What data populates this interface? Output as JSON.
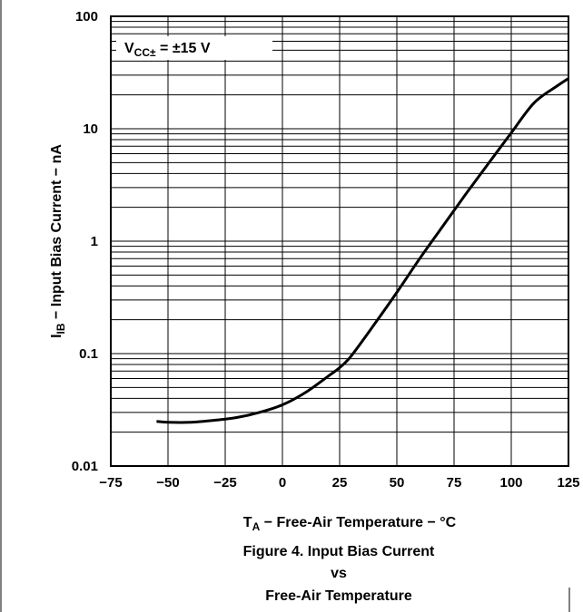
{
  "chart_data": {
    "type": "line",
    "xlabel": {
      "symbol": "T",
      "sub": "A",
      "text": " − Free-Air Temperature − °C"
    },
    "ylabel": {
      "symbol": "I",
      "sub": "IB",
      "text": " − Input Bias Current − nA"
    },
    "xlim": [
      -75,
      125
    ],
    "ylim": [
      0.01,
      100
    ],
    "y_scale": "log",
    "grid": true,
    "x_ticks": [
      -75,
      -50,
      -25,
      0,
      25,
      50,
      75,
      100,
      125
    ],
    "x_tick_labels": [
      "−75",
      "−50",
      "−25",
      "0",
      "25",
      "50",
      "75",
      "100",
      "125"
    ],
    "y_ticks": [
      0.01,
      0.1,
      1,
      10,
      100
    ],
    "y_tick_labels": [
      "0.01",
      "0.1",
      "1",
      "10",
      "100"
    ],
    "annotation": {
      "main": "V",
      "sub": "CC±",
      "text": " = ±15 V"
    },
    "series": [
      {
        "x": [
          -55,
          -50,
          -40,
          -30,
          -20,
          -10,
          0,
          10,
          20,
          25,
          30,
          40,
          50,
          60,
          70,
          80,
          90,
          100,
          110,
          120,
          125
        ],
        "y": [
          0.025,
          0.0245,
          0.0245,
          0.0255,
          0.027,
          0.03,
          0.035,
          0.045,
          0.063,
          0.075,
          0.095,
          0.18,
          0.35,
          0.7,
          1.35,
          2.6,
          4.9,
          9.2,
          17,
          24,
          28
        ]
      }
    ]
  },
  "caption": {
    "line1": "Figure 4. Input Bias Current",
    "line2": "vs",
    "line3": "Free-Air Temperature"
  }
}
